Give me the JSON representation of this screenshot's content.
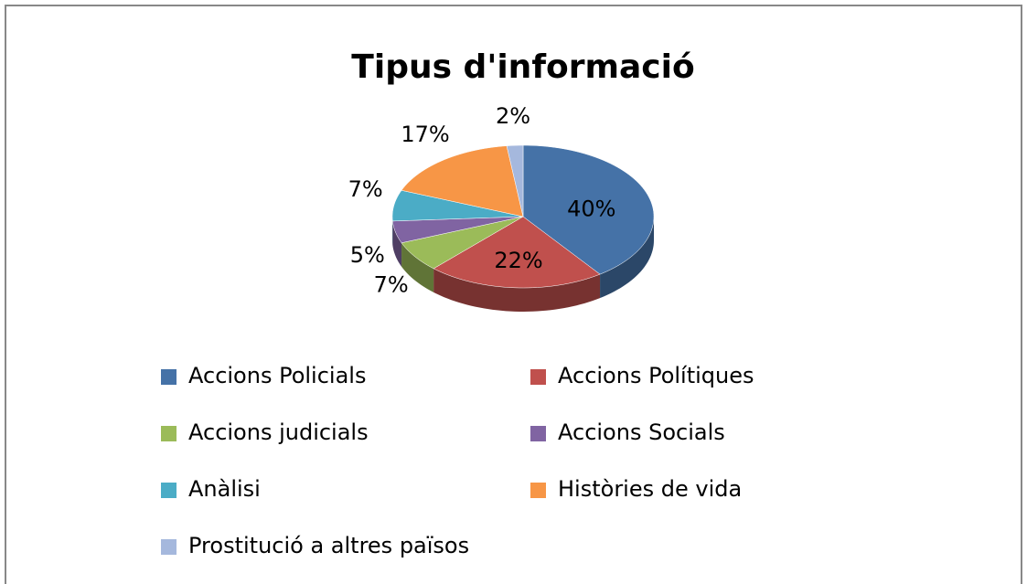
{
  "chart_data": {
    "type": "pie3d",
    "title": "Tipus d'informació",
    "categories": [
      "Accions Policials",
      "Accions Polítiques",
      "Accions judicials",
      "Accions Socials",
      "Anàlisi",
      "Històries de vida",
      "Prostitució a altres països"
    ],
    "values": [
      40,
      22,
      7,
      5,
      7,
      17,
      2
    ],
    "value_labels": [
      "40%",
      "22%",
      "7%",
      "5%",
      "7%",
      "17%",
      "2%"
    ],
    "colors": [
      "#4572a7",
      "#c0504d",
      "#9bbb59",
      "#8064a2",
      "#4bacc6",
      "#f79646",
      "#a5b8dd"
    ],
    "legend": "bottom"
  }
}
